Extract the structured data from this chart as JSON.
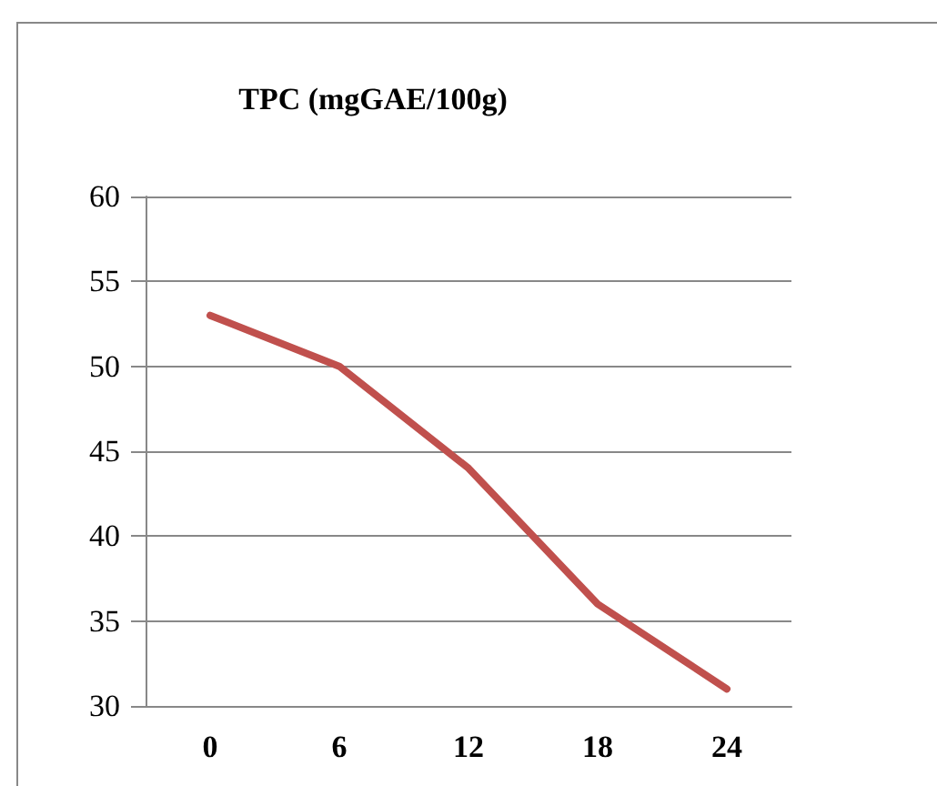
{
  "chart_data": {
    "type": "line",
    "title": "TPC (mgGAE/100g)",
    "categories": [
      "0",
      "6",
      "12",
      "18",
      "24"
    ],
    "series": [
      {
        "color": "#c0504d",
        "values": [
          53,
          50,
          44,
          36,
          31
        ]
      }
    ],
    "ylim": [
      30,
      60
    ],
    "yticks": [
      30,
      35,
      40,
      45,
      50,
      55,
      60
    ],
    "grid": "y",
    "marker": "none",
    "line_style": "solid"
  }
}
